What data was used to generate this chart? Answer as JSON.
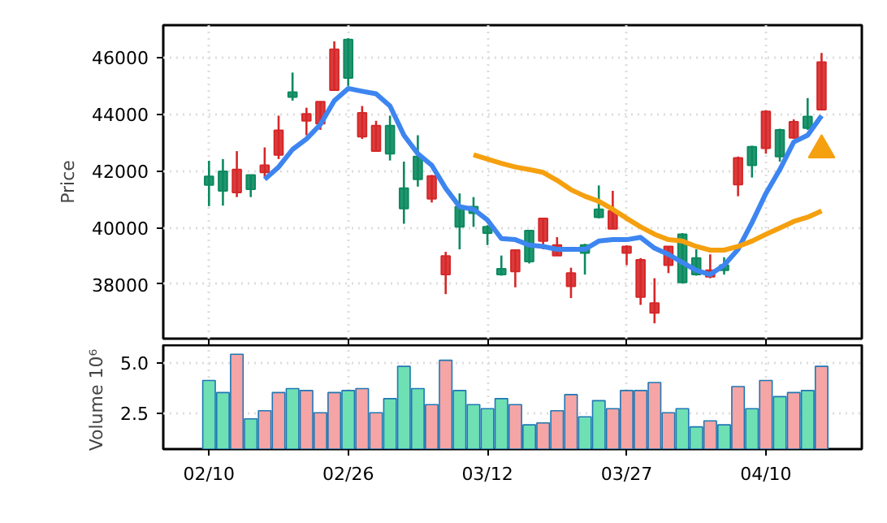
{
  "chart_data": [
    {
      "type": "candlestick",
      "ylabel": "Price",
      "grid": true,
      "tick_labels": "y",
      "ylim": [
        36080,
        47130
      ],
      "yticks": [
        38000,
        40000,
        42000,
        44000,
        46000
      ],
      "ohlc": [
        [
          41500,
          42350,
          40750,
          41800
        ],
        [
          41290,
          42410,
          40770,
          41980
        ],
        [
          42040,
          42690,
          41070,
          41230
        ],
        [
          41350,
          41850,
          41070,
          41850
        ],
        [
          42190,
          42820,
          41790,
          41940
        ],
        [
          43420,
          43940,
          42410,
          42560
        ],
        [
          44600,
          45460,
          44470,
          44770
        ],
        [
          44000,
          44220,
          43250,
          43760
        ],
        [
          44430,
          44430,
          43440,
          43660
        ],
        [
          46280,
          46560,
          44840,
          44840
        ],
        [
          45270,
          46670,
          44990,
          46620
        ],
        [
          44040,
          44280,
          43120,
          43200
        ],
        [
          43590,
          43760,
          42690,
          42690
        ],
        [
          42600,
          43940,
          42360,
          43590
        ],
        [
          40670,
          42320,
          40130,
          41380
        ],
        [
          41700,
          43250,
          41440,
          42500
        ],
        [
          41810,
          41850,
          40880,
          41010
        ],
        [
          38990,
          39140,
          37650,
          38340
        ],
        [
          40020,
          41200,
          39230,
          40730
        ],
        [
          40500,
          41070,
          40020,
          40730
        ],
        [
          39800,
          40080,
          39380,
          40020
        ],
        [
          38340,
          39010,
          38300,
          38540
        ],
        [
          39200,
          39230,
          37890,
          38450
        ],
        [
          38800,
          39890,
          38730,
          39890
        ],
        [
          40320,
          40320,
          39230,
          39520
        ],
        [
          39380,
          39660,
          39010,
          39010
        ],
        [
          38390,
          38580,
          37510,
          37930
        ],
        [
          39100,
          39420,
          38340,
          39380
        ],
        [
          40360,
          41480,
          40320,
          40640
        ],
        [
          40580,
          41290,
          39950,
          39950
        ],
        [
          39330,
          39370,
          38670,
          39100
        ],
        [
          38860,
          38920,
          37270,
          37550
        ],
        [
          37330,
          38210,
          36620,
          36990
        ],
        [
          39330,
          39330,
          38390,
          38670
        ],
        [
          38060,
          39800,
          38020,
          39760
        ],
        [
          38340,
          39230,
          38300,
          38920
        ],
        [
          38490,
          39050,
          38210,
          38260
        ],
        [
          38490,
          38950,
          38340,
          38670
        ],
        [
          42450,
          42500,
          41100,
          41510
        ],
        [
          42190,
          42880,
          41760,
          42840
        ],
        [
          44090,
          44130,
          42600,
          42790
        ],
        [
          42500,
          43480,
          42320,
          43440
        ],
        [
          43720,
          43810,
          43120,
          43160
        ],
        [
          43500,
          44560,
          43440,
          43910
        ],
        [
          45830,
          46150,
          44130,
          44150
        ]
      ],
      "colors": [
        "#0b8a5e",
        "#0b8a5e",
        "#d62728",
        "#0b8a5e",
        "#d62728",
        "#d62728",
        "#0b8a5e",
        "#d62728",
        "#d62728",
        "#d62728",
        "#0b8a5e",
        "#d62728",
        "#d62728",
        "#0b8a5e",
        "#0b8a5e",
        "#0b8a5e",
        "#d62728",
        "#d62728",
        "#0b8a5e",
        "#0b8a5e",
        "#0b8a5e",
        "#0b8a5e",
        "#d62728",
        "#0b8a5e",
        "#d62728",
        "#d62728",
        "#d62728",
        "#0b8a5e",
        "#0b8a5e",
        "#d62728",
        "#d62728",
        "#d62728",
        "#d62728",
        "#d62728",
        "#0b8a5e",
        "#0b8a5e",
        "#d62728",
        "#0b8a5e",
        "#d62728",
        "#0b8a5e",
        "#d62728",
        "#0b8a5e",
        "#d62728",
        "#0b8a5e",
        "#d62728"
      ],
      "series": [
        {
          "type": "line",
          "color": "#3d85f0",
          "values": [
            null,
            null,
            null,
            null,
            41700,
            42130,
            42750,
            43120,
            43630,
            44470,
            44900,
            44800,
            44710,
            44280,
            43250,
            42600,
            42190,
            41380,
            40730,
            40640,
            40260,
            39610,
            39570,
            39380,
            39330,
            39230,
            39230,
            39230,
            39520,
            39570,
            39570,
            39650,
            39270,
            39050,
            38770,
            38490,
            38340,
            38670,
            39230,
            40170,
            41200,
            42040,
            43010,
            43250,
            43940
          ]
        },
        {
          "type": "line",
          "color": "#f5a00f",
          "values": [
            null,
            null,
            null,
            null,
            null,
            null,
            null,
            null,
            null,
            null,
            null,
            null,
            null,
            null,
            null,
            null,
            null,
            null,
            null,
            42560,
            42410,
            42260,
            42130,
            42040,
            41940,
            41660,
            41330,
            41100,
            40920,
            40640,
            40320,
            40020,
            39760,
            39570,
            39520,
            39330,
            39200,
            39200,
            39330,
            39520,
            39760,
            39980,
            40210,
            40360,
            40580
          ]
        },
        {
          "type": "scatter",
          "color": "#f5a00f",
          "marker": "triangle",
          "values": [
            null,
            null,
            null,
            null,
            null,
            null,
            null,
            null,
            null,
            null,
            null,
            null,
            null,
            null,
            null,
            null,
            null,
            null,
            null,
            null,
            null,
            null,
            null,
            null,
            null,
            null,
            null,
            null,
            null,
            null,
            null,
            null,
            null,
            null,
            null,
            null,
            null,
            null,
            null,
            null,
            null,
            null,
            null,
            null,
            42730
          ]
        }
      ]
    },
    {
      "type": "bar",
      "ylabel": "Volume",
      "annotations": [
        "10⁶"
      ],
      "grid": true,
      "categories": [
        "02/10",
        null,
        null,
        null,
        null,
        null,
        null,
        null,
        null,
        null,
        "02/26",
        null,
        null,
        null,
        null,
        null,
        null,
        null,
        null,
        null,
        "03/12",
        null,
        null,
        null,
        null,
        null,
        null,
        null,
        null,
        null,
        "03/27",
        null,
        null,
        null,
        null,
        null,
        null,
        null,
        null,
        null,
        "04/10",
        null,
        null,
        null,
        null
      ],
      "ylim": [
        0.7,
        5.85
      ],
      "yticks": [
        2.5,
        {
          "value": 5,
          "label": "5.0"
        }
      ],
      "values": [
        4.1,
        3.5,
        5.4,
        2.2,
        2.6,
        3.5,
        3.7,
        3.6,
        2.5,
        3.5,
        3.6,
        3.7,
        2.5,
        3.2,
        4.8,
        3.7,
        2.9,
        5.1,
        3.6,
        2.9,
        2.7,
        3.2,
        2.9,
        1.9,
        2.0,
        2.6,
        3.4,
        2.3,
        3.1,
        2.7,
        3.6,
        3.6,
        4.0,
        2.5,
        2.7,
        1.8,
        2.1,
        1.9,
        3.8,
        2.7,
        4.1,
        3.3,
        3.5,
        3.6,
        4.8
      ],
      "colors": [
        "#6ee0b4",
        "#6ee0b4",
        "#f5a5a5",
        "#6ee0b4",
        "#f5a5a5",
        "#f5a5a5",
        "#6ee0b4",
        "#f5a5a5",
        "#f5a5a5",
        "#f5a5a5",
        "#6ee0b4",
        "#f5a5a5",
        "#f5a5a5",
        "#6ee0b4",
        "#6ee0b4",
        "#6ee0b4",
        "#f5a5a5",
        "#f5a5a5",
        "#6ee0b4",
        "#6ee0b4",
        "#6ee0b4",
        "#6ee0b4",
        "#f5a5a5",
        "#6ee0b4",
        "#f5a5a5",
        "#f5a5a5",
        "#f5a5a5",
        "#6ee0b4",
        "#6ee0b4",
        "#f5a5a5",
        "#f5a5a5",
        "#f5a5a5",
        "#f5a5a5",
        "#f5a5a5",
        "#6ee0b4",
        "#6ee0b4",
        "#f5a5a5",
        "#6ee0b4",
        "#f5a5a5",
        "#6ee0b4",
        "#f5a5a5",
        "#6ee0b4",
        "#f5a5a5",
        "#6ee0b4",
        "#f5a5a5"
      ]
    }
  ]
}
